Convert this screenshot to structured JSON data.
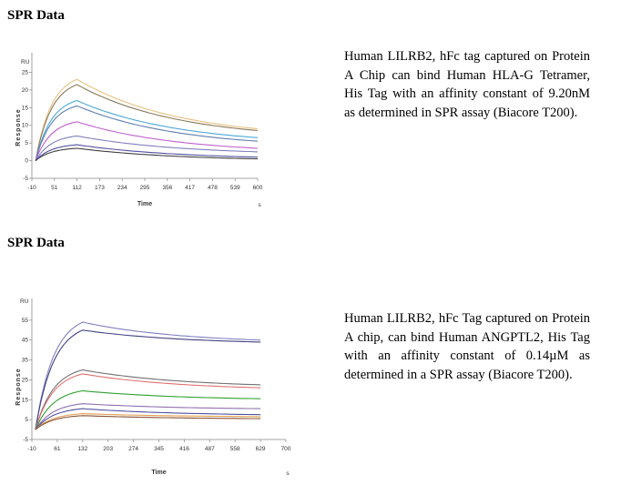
{
  "section1": {
    "title": "SPR Data",
    "description": "Human LILRB2, hFc tag captured on Protein A Chip can bind Human HLA-G Tetramer, His Tag with an affinity constant of 9.20nM as determined in SPR assay (Biacore T200)."
  },
  "section2": {
    "title": "SPR Data",
    "description": "Human LILRB2, hFc Tag captured on Protein A chip, can bind Human ANGPTL2, His Tag with an affinity constant of 0.14µM as determined in a SPR assay (Biacore T200)."
  },
  "chart_data": [
    {
      "type": "line",
      "ylabel_unit": "RU",
      "ylabel": "Response",
      "xlabel": "Time",
      "xlabel_unit": "s",
      "xlim": [
        -10,
        600
      ],
      "ylim": [
        -5,
        30
      ],
      "xticks": [
        -10,
        51,
        112,
        173,
        234,
        295,
        356,
        417,
        478,
        539,
        600
      ],
      "yticks": [
        -5,
        0,
        5,
        10,
        15,
        20,
        25
      ],
      "series": [
        {
          "color": "#e8c080",
          "x": [
            0,
            112,
            600
          ],
          "y": [
            0,
            23.0,
            9.0
          ]
        },
        {
          "color": "#8a7a5a",
          "x": [
            0,
            112,
            600
          ],
          "y": [
            0,
            21.5,
            8.5
          ]
        },
        {
          "color": "#4aa8d8",
          "x": [
            0,
            112,
            600
          ],
          "y": [
            0,
            17.0,
            6.5
          ]
        },
        {
          "color": "#6080b0",
          "x": [
            0,
            112,
            600
          ],
          "y": [
            0,
            15.5,
            5.5
          ]
        },
        {
          "color": "#c060d0",
          "x": [
            0,
            112,
            600
          ],
          "y": [
            0,
            11.0,
            3.5
          ]
        },
        {
          "color": "#8080c0",
          "x": [
            0,
            112,
            600
          ],
          "y": [
            0,
            7.0,
            2.5
          ]
        },
        {
          "color": "#5050a0",
          "x": [
            0,
            112,
            600
          ],
          "y": [
            0,
            4.5,
            1.0
          ]
        },
        {
          "color": "#404040",
          "x": [
            0,
            112,
            600
          ],
          "y": [
            0,
            3.5,
            0.5
          ]
        }
      ]
    },
    {
      "type": "line",
      "ylabel_unit": "RU",
      "ylabel": "Response",
      "xlabel": "Time",
      "xlabel_unit": "s",
      "xlim": [
        -10,
        700
      ],
      "ylim": [
        -5,
        65
      ],
      "xticks": [
        -10,
        61,
        132,
        203,
        274,
        345,
        416,
        487,
        558,
        629,
        700
      ],
      "yticks": [
        -5,
        5,
        15,
        25,
        35,
        45,
        55
      ],
      "series": [
        {
          "color": "#8080c0",
          "x": [
            0,
            132,
            629
          ],
          "y": [
            0,
            54.0,
            45.0
          ]
        },
        {
          "color": "#404080",
          "x": [
            0,
            132,
            629
          ],
          "y": [
            0,
            50.0,
            44.0
          ]
        },
        {
          "color": "#707070",
          "x": [
            0,
            132,
            629
          ],
          "y": [
            0,
            30.0,
            22.5
          ]
        },
        {
          "color": "#e07070",
          "x": [
            0,
            132,
            629
          ],
          "y": [
            0,
            28.0,
            21.0
          ]
        },
        {
          "color": "#30a030",
          "x": [
            0,
            132,
            629
          ],
          "y": [
            0,
            19.5,
            15.5
          ]
        },
        {
          "color": "#9070b0",
          "x": [
            0,
            132,
            629
          ],
          "y": [
            0,
            13.0,
            10.5
          ]
        },
        {
          "color": "#5050a0",
          "x": [
            0,
            132,
            629
          ],
          "y": [
            0,
            10.5,
            7.5
          ]
        },
        {
          "color": "#e0a050",
          "x": [
            0,
            132,
            629
          ],
          "y": [
            0,
            8.0,
            6.5
          ]
        },
        {
          "color": "#8a5030",
          "x": [
            0,
            132,
            629
          ],
          "y": [
            0,
            7.0,
            5.5
          ]
        }
      ]
    }
  ]
}
